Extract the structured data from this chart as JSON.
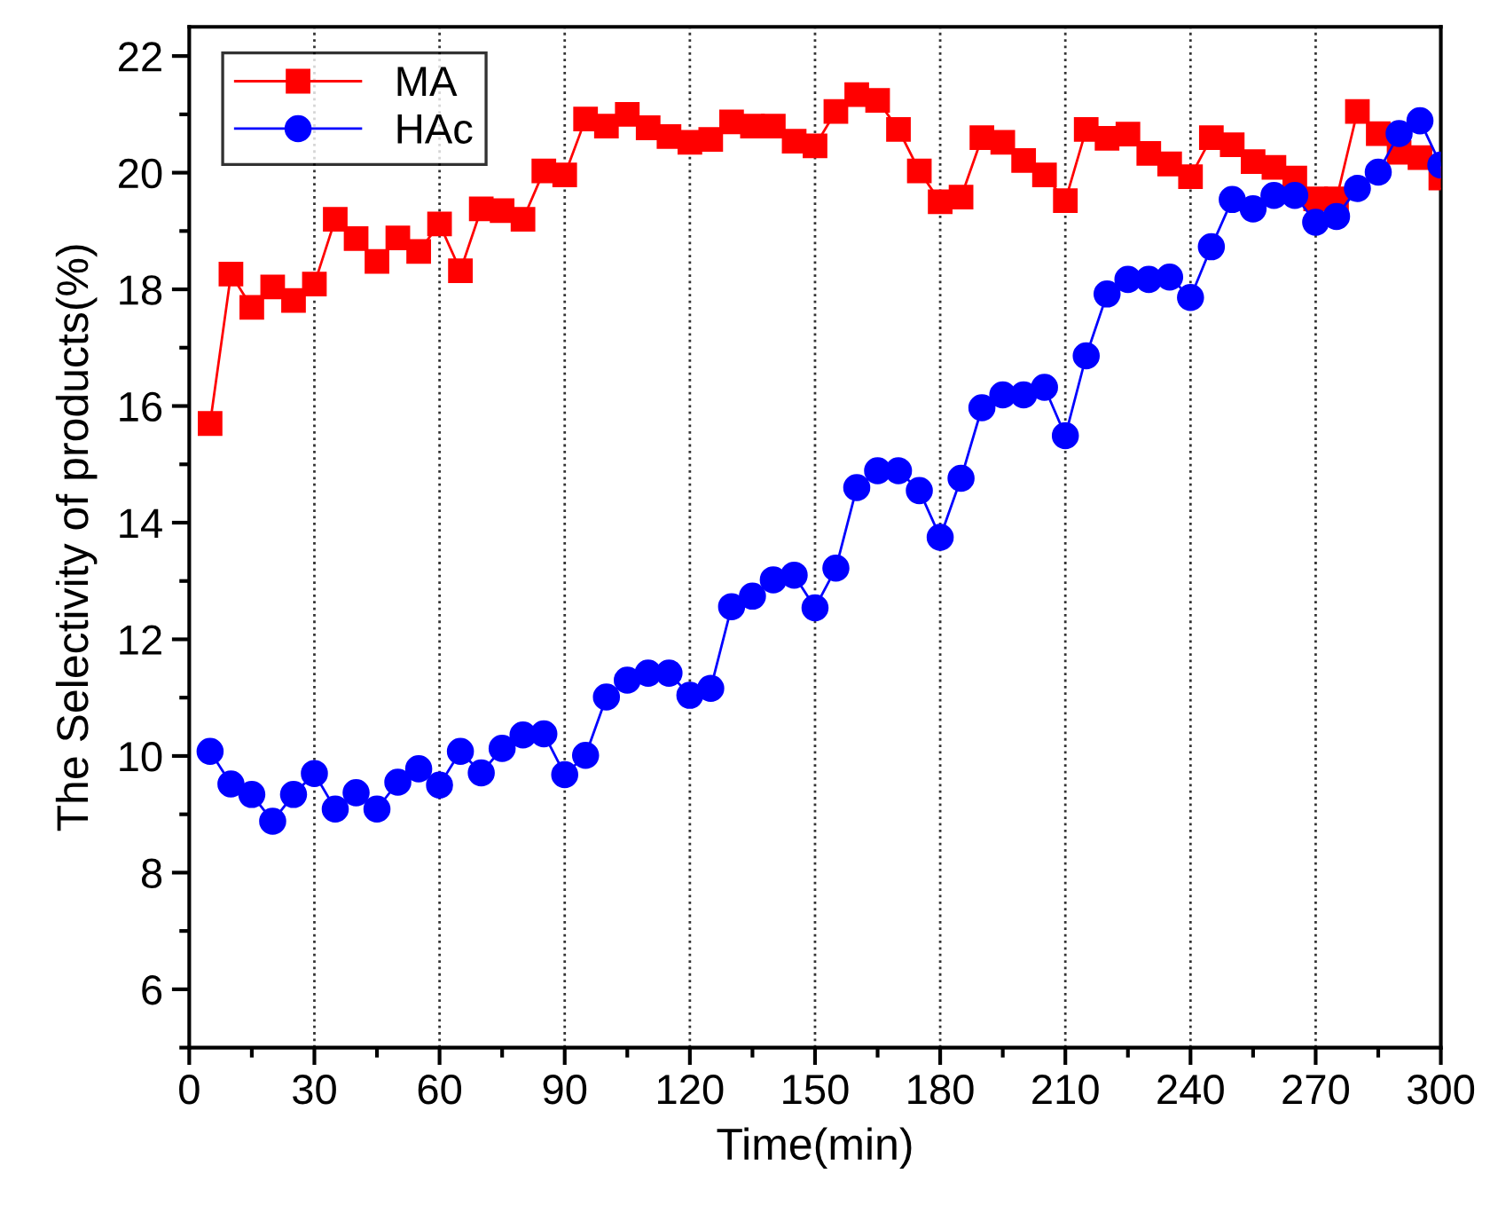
{
  "chart_data": {
    "type": "line",
    "xlabel": "Time(min)",
    "ylabel": "The Selectivity of products(%)",
    "x": [
      5,
      10,
      15,
      20,
      25,
      30,
      35,
      40,
      45,
      50,
      55,
      60,
      65,
      70,
      75,
      80,
      85,
      90,
      95,
      100,
      105,
      110,
      115,
      120,
      125,
      130,
      135,
      140,
      145,
      150,
      155,
      160,
      165,
      170,
      175,
      180,
      185,
      190,
      195,
      200,
      205,
      210,
      215,
      220,
      225,
      230,
      235,
      240,
      245,
      250,
      255,
      260,
      265,
      270,
      275,
      280,
      285,
      290,
      295,
      300
    ],
    "series": [
      {
        "name": "MA",
        "color": "#ff0000",
        "marker": "square",
        "values": [
          15.7,
          18.26,
          17.69,
          18.04,
          17.81,
          18.09,
          19.2,
          18.87,
          18.48,
          18.88,
          18.65,
          19.12,
          18.32,
          19.38,
          19.35,
          19.2,
          20.03,
          19.96,
          20.92,
          20.8,
          21.0,
          20.77,
          20.62,
          20.52,
          20.57,
          20.87,
          20.8,
          20.8,
          20.54,
          20.46,
          21.05,
          21.34,
          21.24,
          20.74,
          20.03,
          19.5,
          19.58,
          20.6,
          20.52,
          20.21,
          19.96,
          19.52,
          20.74,
          20.59,
          20.66,
          20.33,
          20.15,
          19.93,
          20.6,
          20.48,
          20.19,
          20.09,
          19.91,
          19.55,
          19.55,
          21.05,
          20.67,
          20.35,
          20.26,
          19.91
        ]
      },
      {
        "name": "HAc",
        "color": "#0000ff",
        "marker": "circle",
        "values": [
          10.08,
          9.52,
          9.34,
          8.88,
          9.34,
          9.7,
          9.09,
          9.37,
          9.09,
          9.55,
          9.78,
          9.5,
          10.08,
          9.71,
          10.13,
          10.36,
          10.38,
          9.68,
          10.01,
          11.01,
          11.3,
          11.42,
          11.42,
          11.04,
          11.16,
          12.56,
          12.74,
          13.02,
          13.1,
          12.54,
          13.22,
          14.6,
          14.89,
          14.89,
          14.55,
          13.75,
          14.76,
          15.97,
          16.19,
          16.19,
          16.32,
          15.49,
          16.86,
          17.92,
          18.17,
          18.17,
          18.21,
          17.86,
          18.73,
          19.54,
          19.38,
          19.61,
          19.61,
          19.15,
          19.25,
          19.73,
          20.01,
          20.67,
          20.89,
          20.13
        ]
      }
    ],
    "xlim": [
      0,
      300
    ],
    "xticks": [
      0,
      30,
      60,
      90,
      120,
      150,
      180,
      210,
      240,
      270,
      300
    ],
    "ylim": [
      5,
      22.5
    ],
    "yticks": [
      6,
      8,
      10,
      12,
      14,
      16,
      18,
      20,
      22
    ],
    "grid": "x",
    "legend": "top left",
    "line_style": "solid"
  }
}
